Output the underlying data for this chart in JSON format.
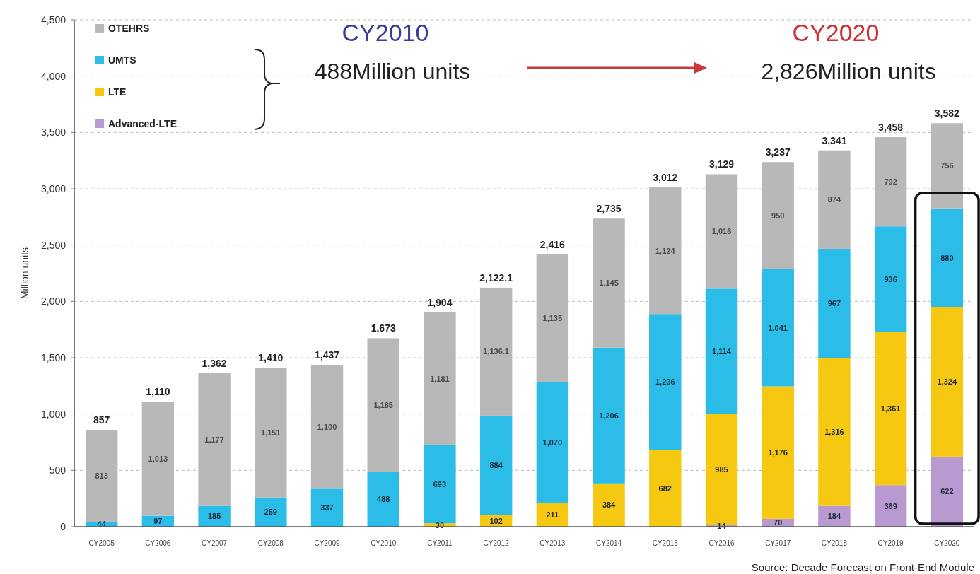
{
  "chart_data": {
    "type": "bar",
    "stacked": true,
    "ylabel": "-Million units-",
    "categories": [
      "CY2005",
      "CY2006",
      "CY2007",
      "CY2008",
      "CY2009",
      "CY2010",
      "CY2011",
      "CY2012",
      "CY2013",
      "CY2014",
      "CY2015",
      "CY2016",
      "CY2017",
      "CY2018",
      "CY2019",
      "CY2020"
    ],
    "series": [
      {
        "name": "Advanced-LTE",
        "color": "#b89ad0",
        "values": [
          0,
          0,
          0,
          0,
          0,
          0,
          0,
          0,
          0,
          0,
          0,
          14,
          70,
          184,
          369,
          622
        ],
        "value_labels": [
          null,
          null,
          null,
          null,
          null,
          null,
          null,
          null,
          null,
          null,
          null,
          "14",
          "70",
          "184",
          "369",
          "622"
        ]
      },
      {
        "name": "LTE",
        "color": "#f7c812",
        "values": [
          0,
          0,
          0,
          0,
          0,
          0,
          30,
          102,
          211,
          384,
          682,
          985,
          1176,
          1316,
          1361,
          1324
        ],
        "value_labels": [
          null,
          null,
          null,
          null,
          null,
          null,
          "30",
          "102",
          "211",
          "384",
          "682",
          "985",
          "1,176",
          "1,316",
          "1,361",
          "1,324"
        ]
      },
      {
        "name": "UMTS",
        "color": "#2bbde8",
        "values": [
          44,
          97,
          185,
          259,
          337,
          488,
          693,
          884,
          1070,
          1206,
          1206,
          1114,
          1041,
          967,
          936,
          880
        ],
        "value_labels": [
          "44",
          "97",
          "185",
          "259",
          "337",
          "488",
          "693",
          "884",
          "1,070",
          "1,206",
          "1,206",
          "1,114",
          "1,041",
          "967",
          "936",
          "880"
        ]
      },
      {
        "name": "OTEHRS",
        "color": "#b8b8b8",
        "values": [
          813,
          1013,
          1177,
          1151,
          1100,
          1185,
          1181,
          1136.1,
          1135,
          1145,
          1124,
          1016,
          950,
          874,
          792,
          756
        ],
        "value_labels": [
          "813",
          "1,013",
          "1,177",
          "1,151",
          "1,100",
          "1,185",
          "1,181",
          "1,136.1",
          "1,135",
          "1,145",
          "1,124",
          "1,016",
          "950",
          "874",
          "792",
          "756"
        ]
      }
    ],
    "totals": [
      "857",
      "1,110",
      "1,362",
      "1,410",
      "1,437",
      "1,673",
      "1,904",
      "2,122.1",
      "2,416",
      "2,735",
      "3,012",
      "3,129",
      "3,237",
      "3,341",
      "3,458",
      "3,582"
    ],
    "ylim": [
      0,
      4500
    ],
    "yticks": [
      0,
      {
        "value": 500,
        "label": "500"
      },
      {
        "value": 1000,
        "label": "1,000"
      },
      {
        "value": 1500,
        "label": "1,500"
      },
      {
        "value": 2000,
        "label": "2,000"
      },
      {
        "value": 2500,
        "label": "2,500"
      },
      {
        "value": 3000,
        "label": "3,000"
      },
      {
        "value": 3500,
        "label": "3,500"
      },
      {
        "value": 4000,
        "label": "4,000"
      },
      {
        "value": 4500,
        "label": "4,500"
      }
    ],
    "grid": "y",
    "legend": "top left",
    "annotations": [
      "CY2010",
      "488Million units",
      "CY2020",
      "2,826Million units",
      "Source: Decade Forecast on Front-End Module"
    ]
  }
}
